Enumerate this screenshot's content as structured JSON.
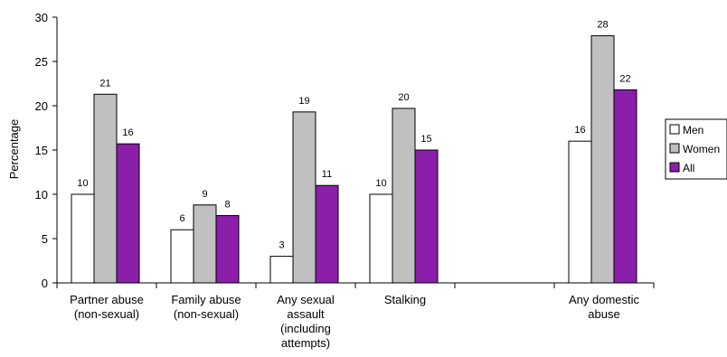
{
  "chart_data": {
    "type": "bar",
    "ylabel": "Percentage",
    "ylim": [
      0,
      30
    ],
    "yticks": [
      0,
      5,
      10,
      15,
      20,
      25,
      30
    ],
    "grid": false,
    "legend_position": "right",
    "categories": [
      {
        "lines": [
          "Partner abuse",
          "(non-sexual)"
        ]
      },
      {
        "lines": [
          "Family abuse",
          "(non-sexual)"
        ]
      },
      {
        "lines": [
          "Any sexual",
          "assault",
          "(including",
          "attempts)"
        ]
      },
      {
        "lines": [
          "Stalking"
        ]
      },
      {
        "lines": []
      },
      {
        "lines": [
          "Any domestic",
          "abuse"
        ]
      }
    ],
    "series": [
      {
        "name": "Men",
        "color": "#ffffff",
        "values": [
          10,
          6,
          3,
          10,
          null,
          16
        ],
        "labels": [
          "10",
          "6",
          "3",
          "10",
          "",
          "16"
        ]
      },
      {
        "name": "Women",
        "color": "#c0c0c0",
        "values": [
          21.3,
          8.8,
          19.3,
          19.7,
          null,
          27.9
        ],
        "labels": [
          "21",
          "9",
          "19",
          "20",
          "",
          "28"
        ]
      },
      {
        "name": "All",
        "color": "#8b1fa9",
        "values": [
          15.7,
          7.6,
          11,
          15,
          null,
          21.8
        ],
        "labels": [
          "16",
          "8",
          "11",
          "15",
          "",
          "22"
        ]
      }
    ]
  }
}
